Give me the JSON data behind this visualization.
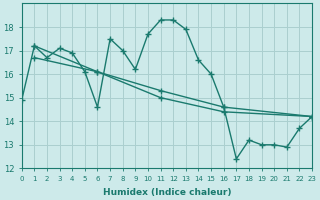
{
  "xlabel": "Humidex (Indice chaleur)",
  "bg_color": "#cdeaea",
  "grid_color": "#aacfcf",
  "line_color": "#1a7a6e",
  "xlim": [
    0,
    23
  ],
  "ylim": [
    12,
    19
  ],
  "yticks": [
    12,
    13,
    14,
    15,
    16,
    17,
    18
  ],
  "xticks": [
    0,
    1,
    2,
    3,
    4,
    5,
    6,
    7,
    8,
    9,
    10,
    11,
    12,
    13,
    14,
    15,
    16,
    17,
    18,
    19,
    20,
    21,
    22,
    23
  ],
  "series1": [
    [
      0,
      14.9
    ],
    [
      1,
      17.2
    ],
    [
      2,
      16.7
    ],
    [
      3,
      17.1
    ],
    [
      4,
      16.9
    ],
    [
      5,
      16.1
    ],
    [
      6,
      14.6
    ],
    [
      7,
      17.5
    ],
    [
      8,
      17.0
    ],
    [
      9,
      16.2
    ],
    [
      10,
      17.7
    ],
    [
      11,
      18.3
    ],
    [
      12,
      18.3
    ],
    [
      13,
      17.9
    ],
    [
      14,
      16.6
    ],
    [
      15,
      16.0
    ],
    [
      16,
      14.6
    ],
    [
      17,
      12.4
    ],
    [
      18,
      13.2
    ],
    [
      19,
      13.0
    ],
    [
      20,
      13.0
    ],
    [
      21,
      12.9
    ],
    [
      22,
      13.7
    ],
    [
      23,
      14.2
    ]
  ],
  "series2": [
    [
      1,
      17.2
    ],
    [
      6,
      16.1
    ],
    [
      11,
      15.3
    ],
    [
      16,
      14.6
    ],
    [
      23,
      14.2
    ]
  ],
  "series3": [
    [
      1,
      16.7
    ],
    [
      6,
      16.1
    ],
    [
      11,
      15.0
    ],
    [
      16,
      14.4
    ],
    [
      23,
      14.2
    ]
  ],
  "marker": "+",
  "marker_size": 4,
  "linewidth": 1.0
}
